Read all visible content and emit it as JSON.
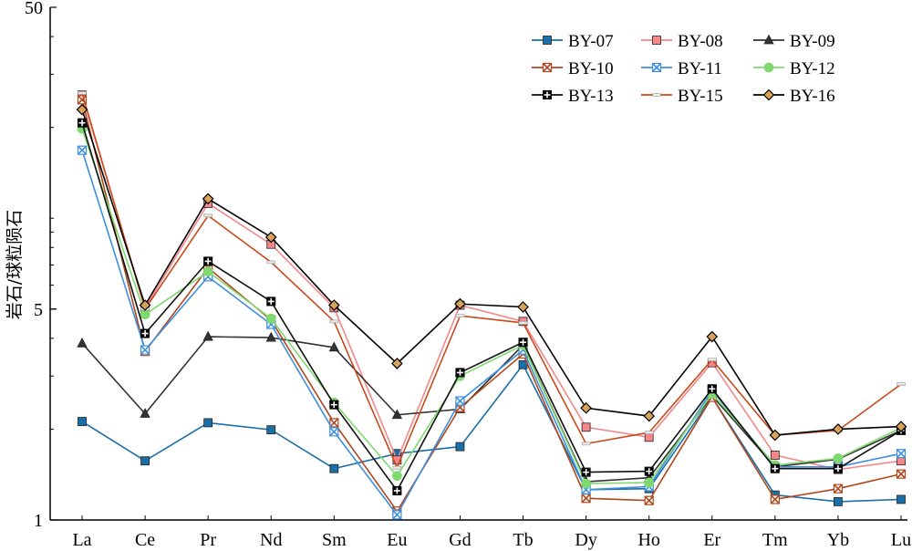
{
  "chart_data": {
    "type": "line",
    "title": "",
    "xlabel": "",
    "ylabel": "岩石/球粒陨石",
    "y_scale": "log",
    "ylim": [
      1,
      50
    ],
    "y_ticks": [
      1,
      5,
      50
    ],
    "categories": [
      "La",
      "Ce",
      "Pr",
      "Nd",
      "Sm",
      "Eu",
      "Gd",
      "Tb",
      "Dy",
      "Ho",
      "Er",
      "Tm",
      "Yb",
      "Lu"
    ],
    "legend_position": "top-right",
    "grid": false,
    "series": [
      {
        "name": "BY-07",
        "color": "#1a6fa8",
        "marker": "square",
        "values": [
          2.12,
          1.57,
          2.1,
          1.99,
          1.48,
          1.66,
          1.75,
          3.27,
          1.26,
          1.27,
          2.55,
          1.21,
          1.15,
          1.17
        ]
      },
      {
        "name": "BY-08",
        "color": "#f4878a",
        "marker": "square",
        "values": [
          25.6,
          5.05,
          11.2,
          8.2,
          5.05,
          1.58,
          5.15,
          4.55,
          2.03,
          1.88,
          3.32,
          1.64,
          1.47,
          1.57
        ]
      },
      {
        "name": "BY-09",
        "color": "#333333",
        "marker": "triangle",
        "values": [
          3.85,
          2.25,
          4.05,
          4.02,
          3.73,
          2.23,
          2.33,
          3.8,
          1.34,
          1.38,
          2.58,
          1.5,
          1.59,
          1.98
        ]
      },
      {
        "name": "BY-10",
        "color": "#b0461c",
        "marker": "x",
        "values": [
          24.7,
          3.62,
          6.85,
          4.6,
          2.1,
          1.07,
          2.36,
          3.55,
          1.18,
          1.16,
          2.55,
          1.17,
          1.27,
          1.42
        ]
      },
      {
        "name": "BY-11",
        "color": "#3d8fe0",
        "marker": "x",
        "values": [
          16.8,
          3.66,
          6.4,
          4.45,
          1.96,
          1.04,
          2.48,
          3.66,
          1.26,
          1.29,
          2.69,
          1.5,
          1.5,
          1.66
        ]
      },
      {
        "name": "BY-12",
        "color": "#7fd96f",
        "marker": "circle",
        "values": [
          19.8,
          4.8,
          6.65,
          4.65,
          2.45,
          1.4,
          3.0,
          3.8,
          1.32,
          1.33,
          2.62,
          1.52,
          1.6,
          2.02
        ]
      },
      {
        "name": "BY-13",
        "color": "#111111",
        "marker": "cross",
        "values": [
          20.7,
          4.15,
          7.2,
          5.3,
          2.41,
          1.25,
          3.08,
          3.88,
          1.44,
          1.45,
          2.72,
          1.48,
          1.48,
          1.98
        ]
      },
      {
        "name": "BY-15",
        "color": "#c94a1c",
        "marker": "dash",
        "values": [
          26.0,
          5.0,
          10.2,
          7.15,
          4.55,
          1.49,
          4.75,
          4.5,
          1.79,
          1.95,
          3.4,
          1.91,
          1.98,
          2.82
        ]
      },
      {
        "name": "BY-16",
        "color": "#000000",
        "marker": "diamond",
        "values": [
          22.9,
          5.15,
          11.6,
          8.65,
          5.15,
          3.3,
          5.2,
          5.08,
          2.35,
          2.21,
          4.05,
          1.91,
          2.0,
          2.04
        ]
      }
    ]
  }
}
